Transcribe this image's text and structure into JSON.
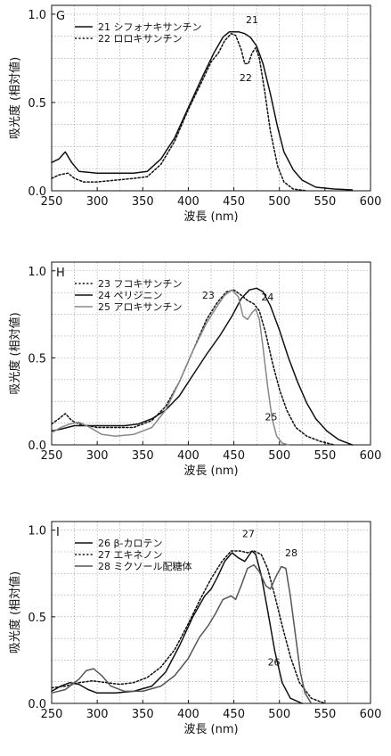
{
  "chart_data": [
    {
      "type": "line",
      "panel_label": "G",
      "xlabel": "波長 (nm)",
      "ylabel": "吸光度 (相対値)",
      "xlim": [
        250,
        600
      ],
      "ylim": [
        0,
        1.05
      ],
      "xticks": [
        250,
        300,
        350,
        400,
        450,
        500,
        550,
        600
      ],
      "yticks": [
        0.0,
        0.5,
        1.0
      ],
      "ytick_labels": [
        "0.0",
        "0.5",
        "1.0"
      ],
      "grid": true,
      "legend_position": "top-left",
      "series": [
        {
          "name": "21 シフォナキサンチン",
          "style": "solid",
          "color": "#111111",
          "points": [
            [
              250,
              0.16
            ],
            [
              258,
              0.18
            ],
            [
              265,
              0.22
            ],
            [
              272,
              0.16
            ],
            [
              280,
              0.11
            ],
            [
              300,
              0.1
            ],
            [
              320,
              0.1
            ],
            [
              340,
              0.1
            ],
            [
              355,
              0.11
            ],
            [
              370,
              0.18
            ],
            [
              385,
              0.3
            ],
            [
              400,
              0.47
            ],
            [
              415,
              0.64
            ],
            [
              428,
              0.78
            ],
            [
              438,
              0.87
            ],
            [
              445,
              0.9
            ],
            [
              455,
              0.9
            ],
            [
              462,
              0.89
            ],
            [
              468,
              0.87
            ],
            [
              475,
              0.82
            ],
            [
              482,
              0.72
            ],
            [
              490,
              0.55
            ],
            [
              498,
              0.36
            ],
            [
              505,
              0.22
            ],
            [
              515,
              0.12
            ],
            [
              525,
              0.06
            ],
            [
              540,
              0.02
            ],
            [
              560,
              0.01
            ],
            [
              580,
              0.005
            ]
          ]
        },
        {
          "name": "22 ロロキサンチン",
          "style": "dotted",
          "color": "#111111",
          "points": [
            [
              250,
              0.07
            ],
            [
              258,
              0.09
            ],
            [
              268,
              0.1
            ],
            [
              275,
              0.07
            ],
            [
              285,
              0.05
            ],
            [
              300,
              0.05
            ],
            [
              320,
              0.06
            ],
            [
              340,
              0.07
            ],
            [
              355,
              0.08
            ],
            [
              370,
              0.15
            ],
            [
              385,
              0.28
            ],
            [
              400,
              0.46
            ],
            [
              415,
              0.62
            ],
            [
              425,
              0.73
            ],
            [
              433,
              0.78
            ],
            [
              440,
              0.85
            ],
            [
              447,
              0.89
            ],
            [
              452,
              0.88
            ],
            [
              458,
              0.8
            ],
            [
              462,
              0.72
            ],
            [
              466,
              0.72
            ],
            [
              470,
              0.78
            ],
            [
              474,
              0.81
            ],
            [
              478,
              0.75
            ],
            [
              484,
              0.56
            ],
            [
              490,
              0.34
            ],
            [
              498,
              0.14
            ],
            [
              505,
              0.05
            ],
            [
              515,
              0.01
            ],
            [
              530,
              0.0
            ]
          ]
        }
      ],
      "annotations": [
        {
          "text": "21",
          "x": 470,
          "y": 0.95
        },
        {
          "text": "22",
          "x": 463,
          "y": 0.62
        }
      ]
    },
    {
      "type": "line",
      "panel_label": "H",
      "xlabel": "波長 (nm)",
      "ylabel": "吸光度 (相対値)",
      "xlim": [
        250,
        600
      ],
      "ylim": [
        0,
        1.05
      ],
      "xticks": [
        250,
        300,
        350,
        400,
        450,
        500,
        550,
        600
      ],
      "yticks": [
        0.0,
        0.5,
        1.0
      ],
      "ytick_labels": [
        "0.0",
        "0.5",
        "1.0"
      ],
      "grid": true,
      "legend_position": "top-left",
      "series": [
        {
          "name": "23 フコキサンチン",
          "style": "dotted",
          "color": "#111111",
          "points": [
            [
              250,
              0.12
            ],
            [
              258,
              0.15
            ],
            [
              265,
              0.18
            ],
            [
              272,
              0.14
            ],
            [
              280,
              0.12
            ],
            [
              300,
              0.1
            ],
            [
              320,
              0.1
            ],
            [
              340,
              0.1
            ],
            [
              360,
              0.14
            ],
            [
              375,
              0.22
            ],
            [
              390,
              0.36
            ],
            [
              405,
              0.54
            ],
            [
              420,
              0.72
            ],
            [
              432,
              0.82
            ],
            [
              442,
              0.88
            ],
            [
              450,
              0.89
            ],
            [
              458,
              0.86
            ],
            [
              465,
              0.83
            ],
            [
              472,
              0.81
            ],
            [
              478,
              0.77
            ],
            [
              485,
              0.64
            ],
            [
              492,
              0.48
            ],
            [
              500,
              0.32
            ],
            [
              508,
              0.2
            ],
            [
              518,
              0.1
            ],
            [
              530,
              0.05
            ],
            [
              545,
              0.02
            ],
            [
              560,
              0.0
            ]
          ]
        },
        {
          "name": "24 ペリジニン",
          "style": "solid",
          "color": "#111111",
          "points": [
            [
              250,
              0.08
            ],
            [
              260,
              0.09
            ],
            [
              275,
              0.11
            ],
            [
              290,
              0.11
            ],
            [
              310,
              0.11
            ],
            [
              330,
              0.11
            ],
            [
              345,
              0.12
            ],
            [
              360,
              0.15
            ],
            [
              375,
              0.2
            ],
            [
              390,
              0.28
            ],
            [
              405,
              0.4
            ],
            [
              420,
              0.52
            ],
            [
              435,
              0.63
            ],
            [
              448,
              0.74
            ],
            [
              458,
              0.84
            ],
            [
              467,
              0.89
            ],
            [
              475,
              0.9
            ],
            [
              482,
              0.88
            ],
            [
              490,
              0.8
            ],
            [
              500,
              0.66
            ],
            [
              510,
              0.5
            ],
            [
              520,
              0.36
            ],
            [
              530,
              0.24
            ],
            [
              540,
              0.15
            ],
            [
              552,
              0.08
            ],
            [
              565,
              0.03
            ],
            [
              580,
              0.0
            ]
          ]
        },
        {
          "name": "25 アロキサンチン",
          "style": "solid",
          "color": "#888888",
          "points": [
            [
              250,
              0.07
            ],
            [
              260,
              0.1
            ],
            [
              270,
              0.12
            ],
            [
              280,
              0.13
            ],
            [
              292,
              0.1
            ],
            [
              305,
              0.06
            ],
            [
              320,
              0.05
            ],
            [
              340,
              0.06
            ],
            [
              360,
              0.1
            ],
            [
              375,
              0.2
            ],
            [
              390,
              0.36
            ],
            [
              405,
              0.54
            ],
            [
              420,
              0.7
            ],
            [
              432,
              0.8
            ],
            [
              440,
              0.86
            ],
            [
              448,
              0.89
            ],
            [
              455,
              0.85
            ],
            [
              460,
              0.74
            ],
            [
              465,
              0.72
            ],
            [
              470,
              0.76
            ],
            [
              474,
              0.78
            ],
            [
              478,
              0.72
            ],
            [
              482,
              0.56
            ],
            [
              487,
              0.34
            ],
            [
              492,
              0.15
            ],
            [
              497,
              0.05
            ],
            [
              503,
              0.01
            ],
            [
              510,
              0.0
            ]
          ]
        }
      ],
      "annotations": [
        {
          "text": "23",
          "x": 422,
          "y": 0.84
        },
        {
          "text": "24",
          "x": 487,
          "y": 0.83
        },
        {
          "text": "25",
          "x": 491,
          "y": 0.14
        }
      ]
    },
    {
      "type": "line",
      "panel_label": "I",
      "xlabel": "波長 (nm)",
      "ylabel": "吸光度 (相対値)",
      "xlim": [
        250,
        600
      ],
      "ylim": [
        0,
        1.05
      ],
      "xticks": [
        250,
        300,
        350,
        400,
        450,
        500,
        550,
        600
      ],
      "yticks": [
        0.0,
        0.5,
        1.0
      ],
      "ytick_labels": [
        "0.0",
        "0.5",
        "1.0"
      ],
      "grid": true,
      "legend_position": "top-left",
      "series": [
        {
          "name": "26 β-カロテン",
          "style": "solid",
          "color": "#111111",
          "points": [
            [
              250,
              0.07
            ],
            [
              260,
              0.1
            ],
            [
              270,
              0.12
            ],
            [
              280,
              0.11
            ],
            [
              290,
              0.08
            ],
            [
              300,
              0.06
            ],
            [
              320,
              0.06
            ],
            [
              340,
              0.07
            ],
            [
              360,
              0.1
            ],
            [
              375,
              0.18
            ],
            [
              390,
              0.33
            ],
            [
              405,
              0.5
            ],
            [
              418,
              0.62
            ],
            [
              425,
              0.66
            ],
            [
              432,
              0.73
            ],
            [
              440,
              0.82
            ],
            [
              448,
              0.87
            ],
            [
              455,
              0.84
            ],
            [
              462,
              0.82
            ],
            [
              470,
              0.88
            ],
            [
              474,
              0.86
            ],
            [
              480,
              0.74
            ],
            [
              487,
              0.54
            ],
            [
              495,
              0.3
            ],
            [
              503,
              0.12
            ],
            [
              512,
              0.03
            ],
            [
              525,
              0.0
            ]
          ]
        },
        {
          "name": "27 エキネノン",
          "style": "dotted",
          "color": "#111111",
          "points": [
            [
              250,
              0.09
            ],
            [
              265,
              0.1
            ],
            [
              280,
              0.12
            ],
            [
              295,
              0.13
            ],
            [
              310,
              0.12
            ],
            [
              325,
              0.11
            ],
            [
              340,
              0.12
            ],
            [
              355,
              0.15
            ],
            [
              370,
              0.21
            ],
            [
              385,
              0.31
            ],
            [
              400,
              0.46
            ],
            [
              413,
              0.6
            ],
            [
              425,
              0.72
            ],
            [
              437,
              0.82
            ],
            [
              447,
              0.88
            ],
            [
              457,
              0.88
            ],
            [
              465,
              0.87
            ],
            [
              472,
              0.88
            ],
            [
              480,
              0.86
            ],
            [
              487,
              0.78
            ],
            [
              495,
              0.62
            ],
            [
              503,
              0.45
            ],
            [
              512,
              0.27
            ],
            [
              522,
              0.12
            ],
            [
              535,
              0.03
            ],
            [
              550,
              0.0
            ]
          ]
        },
        {
          "name": "28 ミクソール配糖体",
          "style": "solid",
          "color": "#555555",
          "points": [
            [
              250,
              0.06
            ],
            [
              265,
              0.08
            ],
            [
              280,
              0.14
            ],
            [
              288,
              0.19
            ],
            [
              296,
              0.2
            ],
            [
              305,
              0.16
            ],
            [
              315,
              0.1
            ],
            [
              330,
              0.07
            ],
            [
              350,
              0.07
            ],
            [
              370,
              0.1
            ],
            [
              385,
              0.16
            ],
            [
              400,
              0.26
            ],
            [
              412,
              0.38
            ],
            [
              422,
              0.45
            ],
            [
              430,
              0.52
            ],
            [
              438,
              0.6
            ],
            [
              447,
              0.62
            ],
            [
              452,
              0.6
            ],
            [
              458,
              0.68
            ],
            [
              465,
              0.78
            ],
            [
              472,
              0.8
            ],
            [
              478,
              0.76
            ],
            [
              485,
              0.68
            ],
            [
              490,
              0.66
            ],
            [
              496,
              0.73
            ],
            [
              502,
              0.79
            ],
            [
              507,
              0.78
            ],
            [
              512,
              0.62
            ],
            [
              518,
              0.38
            ],
            [
              523,
              0.18
            ],
            [
              528,
              0.06
            ],
            [
              535,
              0.0
            ]
          ]
        }
      ],
      "annotations": [
        {
          "text": "27",
          "x": 466,
          "y": 0.96
        },
        {
          "text": "28",
          "x": 513,
          "y": 0.85
        },
        {
          "text": "26",
          "x": 494,
          "y": 0.22
        }
      ]
    }
  ]
}
